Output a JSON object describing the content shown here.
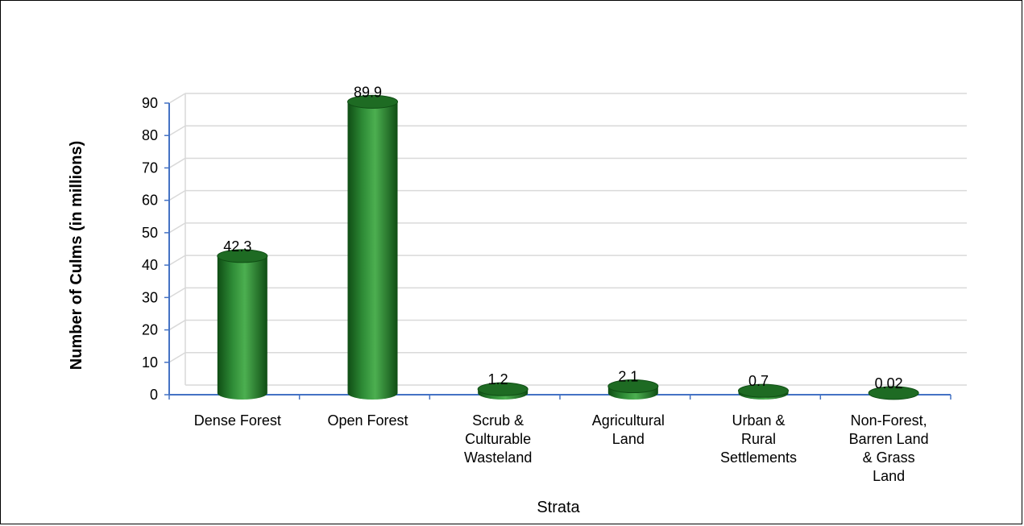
{
  "chart_data": {
    "type": "bar",
    "categories": [
      "Dense Forest",
      "Open Forest",
      "Scrub & Culturable Wasteland",
      "Agricultural Land",
      "Urban & Rural Settlements",
      "Non-Forest, Barren Land & Grass Land"
    ],
    "category_lines": [
      [
        "Dense Forest"
      ],
      [
        "Open Forest"
      ],
      [
        "Scrub &",
        "Culturable",
        "Wasteland"
      ],
      [
        "Agricultural",
        "Land"
      ],
      [
        "Urban &",
        "Rural",
        "Settlements"
      ],
      [
        "Non-Forest,",
        "Barren Land",
        "& Grass",
        "Land"
      ]
    ],
    "values": [
      42.3,
      89.9,
      1.2,
      2.1,
      0.7,
      0.02
    ],
    "value_labels": [
      "42.3",
      "89.9",
      "1.2",
      "2.1",
      "0.7",
      "0.02"
    ],
    "xlabel": "Strata",
    "ylabel": "Number of Culms (in millions)",
    "ylim": [
      0,
      90
    ],
    "yticks": [
      0,
      10,
      20,
      30,
      40,
      50,
      60,
      70,
      80,
      90
    ],
    "grid": true,
    "bar_style": "3d-cylinder",
    "colors": {
      "bar": "#2e7d32",
      "bar_dark": "#0f4d14",
      "bar_light": "#4caf50",
      "top": "#1e6b23",
      "grid": "#d9d9d9",
      "axis": "#4472c4"
    }
  }
}
